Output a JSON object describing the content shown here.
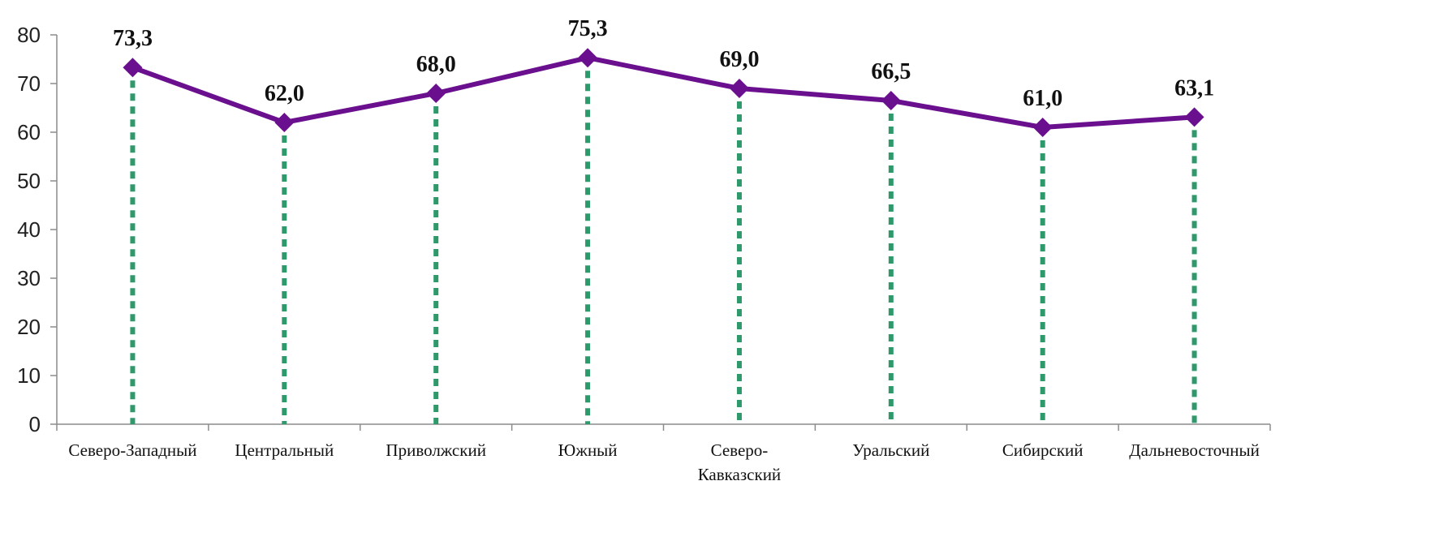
{
  "chart_data": {
    "type": "line",
    "title": "",
    "xlabel": "",
    "ylabel": "",
    "categories": [
      [
        "Северо-Западный"
      ],
      [
        "Центральный"
      ],
      [
        "Приволжский"
      ],
      [
        "Южный"
      ],
      [
        "Северо-",
        "Кавказский"
      ],
      [
        "Уральский"
      ],
      [
        "Сибирский"
      ],
      [
        "Дальневосточный"
      ]
    ],
    "series": [
      {
        "values": [
          73.3,
          62.0,
          68.0,
          75.3,
          69.0,
          66.5,
          61.0,
          63.1
        ],
        "data_labels": [
          "73,3",
          "62,0",
          "68,0",
          "75,3",
          "69,0",
          "66,5",
          "61,0",
          "63,1"
        ],
        "color": "#6a0f8e"
      }
    ],
    "ylim": [
      0,
      80
    ],
    "yticks": [
      0,
      10,
      20,
      30,
      40,
      50,
      60,
      70,
      80
    ],
    "grid": false,
    "drop_lines": true,
    "drop_line_color": "#2e9a6b",
    "marker": "diamond",
    "legend": "none"
  }
}
